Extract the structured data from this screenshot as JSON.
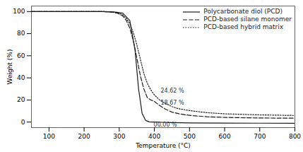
{
  "chart_data": {
    "type": "line",
    "title": "",
    "xlabel": "Temperature (°C)",
    "ylabel": "Weight (%)",
    "xlim": [
      50,
      800
    ],
    "ylim": [
      -5,
      105
    ],
    "xticks": [
      100,
      200,
      300,
      400,
      500,
      600,
      700,
      800
    ],
    "yticks": [
      0,
      20,
      40,
      60,
      80,
      100
    ],
    "grid": false,
    "legend": "upper right",
    "series": [
      {
        "name": "Polycarbonate diol (PCD)",
        "color": "#1a1a1a",
        "line_style": "solid",
        "x": [
          50,
          100,
          150,
          200,
          250,
          270,
          290,
          310,
          330,
          345,
          355,
          365,
          375,
          385,
          395,
          405,
          420,
          450,
          500,
          600,
          700,
          800
        ],
        "values": [
          100,
          100,
          100,
          100,
          100,
          99.8,
          99.5,
          98.5,
          92,
          65,
          30,
          8,
          1.5,
          0.2,
          0.0,
          0.0,
          -0.2,
          -0.5,
          -0.8,
          -0.9,
          -1.0,
          -1.1
        ]
      },
      {
        "name": "PCD-based silane monomer",
        "color": "#1a1a1a",
        "line_style": "dashed",
        "x": [
          50,
          100,
          150,
          200,
          250,
          265,
          280,
          295,
          310,
          320,
          330,
          340,
          350,
          360,
          370,
          380,
          390,
          400,
          415,
          430,
          450,
          470,
          490,
          510,
          550,
          600,
          700,
          800
        ],
        "values": [
          100,
          100,
          100,
          100,
          100,
          99.8,
          99.5,
          98.5,
          96,
          92,
          85,
          74,
          58,
          42,
          30,
          22,
          20,
          18.67,
          15,
          12,
          9,
          7.5,
          6.5,
          5.8,
          4.8,
          4.2,
          3.7,
          3.5
        ]
      },
      {
        "name": "PCD-based hybrid matrix",
        "color": "#1a1a1a",
        "line_style": "dotted",
        "x": [
          50,
          100,
          150,
          200,
          250,
          265,
          280,
          295,
          310,
          320,
          330,
          340,
          350,
          360,
          370,
          380,
          390,
          400,
          415,
          430,
          450,
          470,
          490,
          510,
          550,
          600,
          700,
          800
        ],
        "values": [
          100,
          100,
          100,
          100,
          100,
          99.8,
          99.5,
          99,
          97,
          94,
          89,
          81,
          70,
          57,
          44,
          35,
          29,
          24.62,
          20,
          17,
          14,
          12,
          11,
          10,
          8.5,
          7.5,
          6.5,
          6.0
        ]
      }
    ],
    "annotations": [
      {
        "text": "24.62 %",
        "x": 418,
        "y": 26.5
      },
      {
        "text": "18.67 %",
        "x": 418,
        "y": 15.5
      },
      {
        "text": "00.00 %",
        "x": 398,
        "y": -4.0
      }
    ]
  }
}
